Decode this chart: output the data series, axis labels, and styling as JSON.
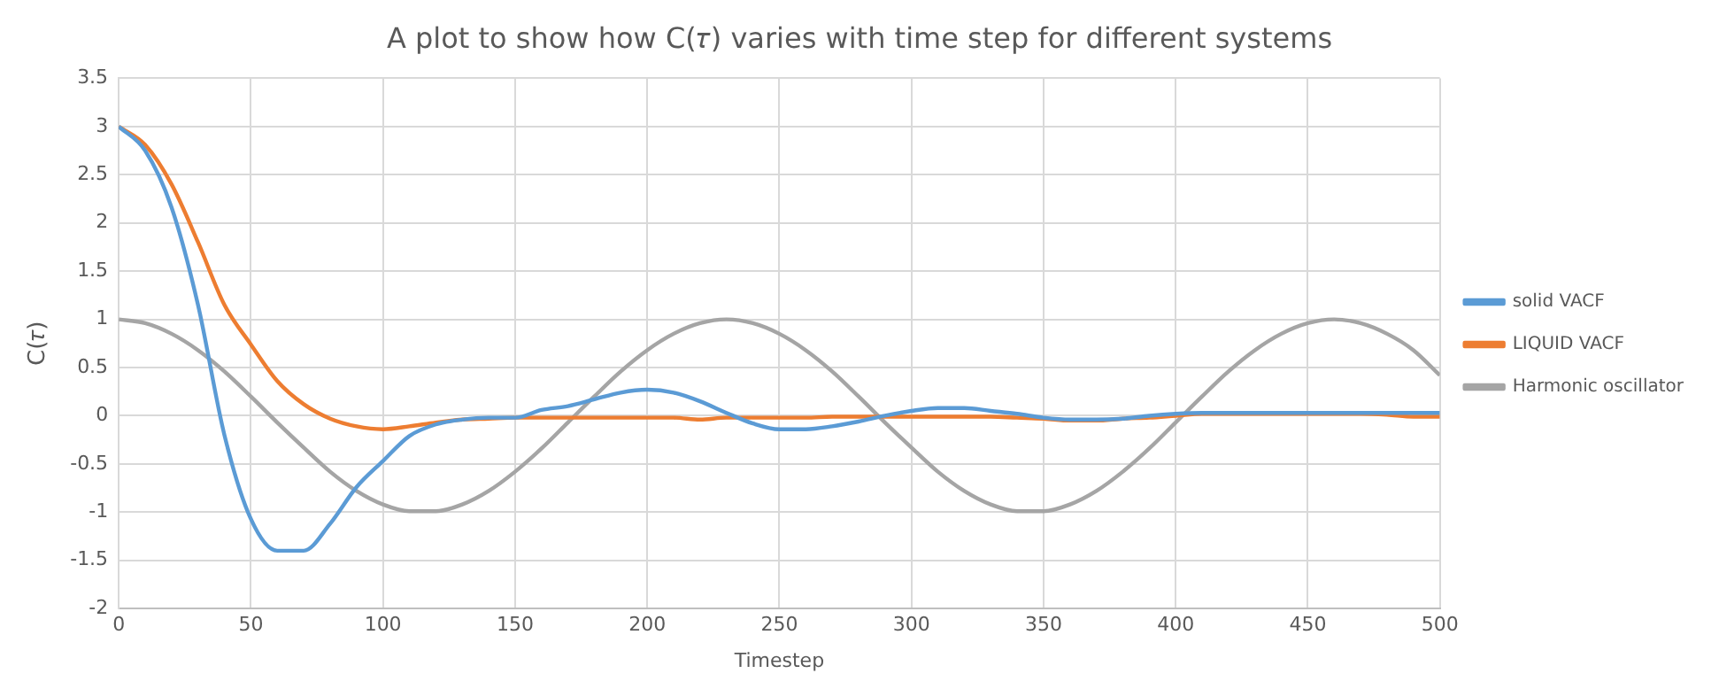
{
  "chart_data": {
    "type": "line",
    "title": "A plot to show how C(𝜏) varies with time step for different systems",
    "xlabel": "Timestep",
    "ylabel": "C(𝜏)",
    "x": [
      0,
      10,
      20,
      30,
      40,
      50,
      60,
      70,
      80,
      90,
      100,
      110,
      120,
      130,
      140,
      150,
      160,
      170,
      180,
      190,
      200,
      210,
      220,
      230,
      240,
      250,
      260,
      270,
      280,
      290,
      300,
      310,
      320,
      330,
      340,
      350,
      360,
      370,
      380,
      390,
      400,
      410,
      420,
      430,
      440,
      450,
      460,
      470,
      480,
      490,
      500
    ],
    "series": [
      {
        "name": "solid VACF",
        "color": "#5b9bd5",
        "values": [
          3,
          2.75,
          2.16,
          1.15,
          -0.2,
          -1.07,
          -1.4,
          -1.4,
          -1.12,
          -0.74,
          -0.47,
          -0.21,
          -0.09,
          -0.04,
          -0.02,
          -0.02,
          0.06,
          0.1,
          0.17,
          0.24,
          0.27,
          0.24,
          0.15,
          0.03,
          -0.08,
          -0.14,
          -0.14,
          -0.11,
          -0.06,
          0,
          0.05,
          0.08,
          0.08,
          0.05,
          0.02,
          -0.02,
          -0.04,
          -0.04,
          -0.03,
          0,
          0.02,
          0.03,
          0.03,
          0.03,
          0.03,
          0.03,
          0.03,
          0.03,
          0.03,
          0.03,
          0.03
        ]
      },
      {
        "name": "LIQUID VACF",
        "color": "#ed7d31",
        "values": [
          3,
          2.81,
          2.4,
          1.8,
          1.15,
          0.74,
          0.36,
          0.12,
          -0.03,
          -0.11,
          -0.14,
          -0.11,
          -0.07,
          -0.04,
          -0.03,
          -0.02,
          -0.02,
          -0.02,
          -0.02,
          -0.02,
          -0.02,
          -0.02,
          -0.04,
          -0.02,
          -0.02,
          -0.02,
          -0.02,
          -0.01,
          -0.01,
          -0.01,
          -0.01,
          -0.01,
          -0.01,
          -0.01,
          -0.02,
          -0.03,
          -0.05,
          -0.05,
          -0.03,
          -0.02,
          0,
          0.02,
          0.02,
          0.02,
          0.02,
          0.02,
          0.02,
          0.02,
          0.01,
          -0.01,
          -0.01
        ]
      },
      {
        "name": "Harmonic oscillator",
        "color": "#a5a5a5",
        "values": [
          1,
          0.96,
          0.85,
          0.68,
          0.46,
          0.2,
          -0.07,
          -0.33,
          -0.58,
          -0.78,
          -0.92,
          -0.99,
          -0.99,
          -0.92,
          -0.78,
          -0.58,
          -0.34,
          -0.07,
          0.2,
          0.46,
          0.68,
          0.85,
          0.96,
          1,
          0.96,
          0.85,
          0.68,
          0.46,
          0.2,
          -0.07,
          -0.33,
          -0.58,
          -0.78,
          -0.92,
          -0.99,
          -0.99,
          -0.92,
          -0.78,
          -0.58,
          -0.34,
          -0.07,
          0.2,
          0.46,
          0.68,
          0.85,
          0.96,
          1,
          0.96,
          0.85,
          0.68,
          0.42
        ]
      }
    ],
    "xlim": [
      0,
      500
    ],
    "xticks": [
      0,
      50,
      100,
      150,
      200,
      250,
      300,
      350,
      400,
      450,
      500
    ],
    "ylim": [
      -2,
      3.5
    ],
    "yticks": [
      -2,
      -1.5,
      -1,
      -0.5,
      0,
      0.5,
      1,
      1.5,
      2,
      2.5,
      3,
      3.5
    ],
    "grid": true,
    "legend": "right",
    "marker": "none",
    "line_style": "solid"
  }
}
